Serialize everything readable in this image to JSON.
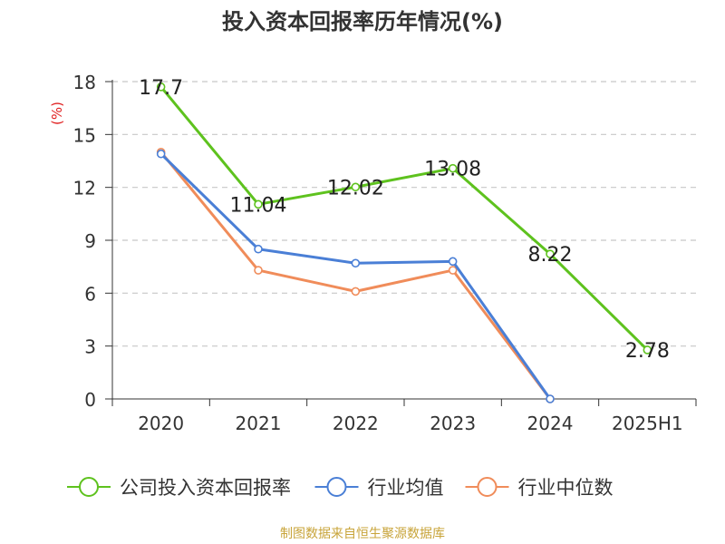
{
  "title": "投入资本回报率历年情况(%)",
  "source": "制图数据来自恒生聚源数据库",
  "colors": {
    "company": "#5ec21e",
    "industry_avg": "#4a7fd6",
    "industry_median": "#f08c5a",
    "unit": "#e02020",
    "grid": "#c8c8c8",
    "axis": "#333333"
  },
  "chart_data": {
    "type": "line",
    "title": "投入资本回报率历年情况(%)",
    "ylabel": "(%)",
    "xlabel": "",
    "categories": [
      "2020",
      "2021",
      "2022",
      "2023",
      "2024",
      "2025H1"
    ],
    "ylim": [
      0,
      18
    ],
    "yticks": [
      0,
      3,
      6,
      9,
      12,
      15,
      18
    ],
    "grid": true,
    "legend": "bottom",
    "series": [
      {
        "name": "公司投入资本回报率",
        "values": [
          17.7,
          11.04,
          12.02,
          13.08,
          8.22,
          2.78
        ],
        "labels": [
          "17.7",
          "11.04",
          "12.02",
          "13.08",
          "8.22",
          "2.78"
        ]
      },
      {
        "name": "行业均值",
        "values": [
          13.9,
          8.5,
          7.7,
          7.8,
          0.0,
          null
        ]
      },
      {
        "name": "行业中位数",
        "values": [
          14.0,
          7.3,
          6.1,
          7.3,
          0.0,
          null
        ]
      }
    ]
  }
}
